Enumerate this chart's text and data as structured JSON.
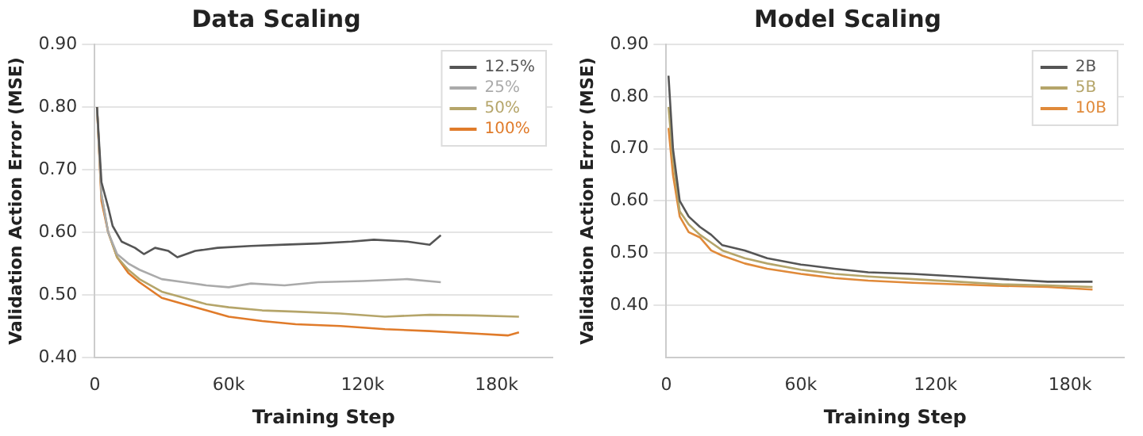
{
  "chart_data": [
    {
      "type": "line",
      "title": "Data Scaling",
      "xlabel": "Training Step",
      "ylabel": "Validation Action Error (MSE)",
      "xlim": [
        0,
        205000
      ],
      "xticks": [
        0,
        {
          "value": 60000,
          "label": "60k"
        },
        {
          "value": 120000,
          "label": "120k"
        },
        {
          "value": 180000,
          "label": "180k"
        }
      ],
      "ylim": [
        0.4,
        0.9
      ],
      "yticks": [
        {
          "value": 0.4,
          "label": "0.40"
        },
        {
          "value": 0.5,
          "label": "0.50"
        },
        {
          "value": 0.6,
          "label": "0.60"
        },
        {
          "value": 0.7,
          "label": "0.70"
        },
        {
          "value": 0.8,
          "label": "0.80"
        },
        {
          "value": 0.9,
          "label": "0.90"
        }
      ],
      "grid": "y",
      "legend": "top right",
      "marker": "none",
      "line_style": "solid",
      "series": [
        {
          "name": "12.5%",
          "color": "#555555",
          "x": [
            1000,
            3000,
            6000,
            8000,
            12000,
            18000,
            22000,
            27000,
            33000,
            37000,
            45000,
            55000,
            70000,
            85000,
            100000,
            115000,
            125000,
            140000,
            150000,
            155000
          ],
          "values": [
            0.8,
            0.68,
            0.64,
            0.61,
            0.585,
            0.575,
            0.565,
            0.575,
            0.57,
            0.56,
            0.57,
            0.575,
            0.578,
            0.58,
            0.582,
            0.585,
            0.588,
            0.585,
            0.58,
            0.595
          ]
        },
        {
          "name": "25%",
          "color": "#aaaaaa",
          "x": [
            1000,
            3000,
            6000,
            10000,
            15000,
            20000,
            30000,
            40000,
            50000,
            60000,
            70000,
            85000,
            100000,
            120000,
            140000,
            155000
          ],
          "values": [
            0.8,
            0.66,
            0.6,
            0.565,
            0.55,
            0.54,
            0.525,
            0.52,
            0.515,
            0.512,
            0.518,
            0.515,
            0.52,
            0.522,
            0.525,
            0.52
          ]
        },
        {
          "name": "50%",
          "color": "#b5a56a",
          "x": [
            1000,
            3000,
            6000,
            10000,
            15000,
            20000,
            30000,
            40000,
            50000,
            60000,
            75000,
            90000,
            110000,
            130000,
            150000,
            170000,
            190000
          ],
          "values": [
            0.8,
            0.66,
            0.6,
            0.56,
            0.54,
            0.525,
            0.505,
            0.495,
            0.485,
            0.48,
            0.475,
            0.473,
            0.47,
            0.465,
            0.468,
            0.467,
            0.465
          ]
        },
        {
          "name": "100%",
          "color": "#e07b2a",
          "x": [
            1000,
            3000,
            6000,
            10000,
            15000,
            20000,
            30000,
            40000,
            50000,
            60000,
            75000,
            90000,
            110000,
            130000,
            150000,
            170000,
            185000,
            190000
          ],
          "values": [
            0.8,
            0.65,
            0.6,
            0.56,
            0.535,
            0.52,
            0.495,
            0.485,
            0.475,
            0.465,
            0.458,
            0.453,
            0.45,
            0.445,
            0.442,
            0.438,
            0.435,
            0.44
          ]
        }
      ]
    },
    {
      "type": "line",
      "title": "Model Scaling",
      "xlabel": "Training Step",
      "ylabel": "Validation Action Error (MSE)",
      "xlim": [
        0,
        204000
      ],
      "xticks": [
        0,
        {
          "value": 60000,
          "label": "60k"
        },
        {
          "value": 120000,
          "label": "120k"
        },
        {
          "value": 180000,
          "label": "180k"
        }
      ],
      "ylim": [
        0.3,
        0.9
      ],
      "yticks": [
        {
          "value": 0.4,
          "label": "0.40"
        },
        {
          "value": 0.5,
          "label": "0.50"
        },
        {
          "value": 0.6,
          "label": "0.60"
        },
        {
          "value": 0.7,
          "label": "0.70"
        },
        {
          "value": 0.8,
          "label": "0.80"
        },
        {
          "value": 0.9,
          "label": "0.90"
        }
      ],
      "grid": "y",
      "legend": "top right",
      "marker": "none",
      "line_style": "solid",
      "series": [
        {
          "name": "2B",
          "color": "#555555",
          "x": [
            1000,
            3000,
            6000,
            10000,
            15000,
            20000,
            25000,
            35000,
            45000,
            60000,
            75000,
            90000,
            110000,
            130000,
            150000,
            170000,
            190000
          ],
          "values": [
            0.84,
            0.7,
            0.6,
            0.57,
            0.55,
            0.535,
            0.515,
            0.505,
            0.49,
            0.478,
            0.47,
            0.463,
            0.46,
            0.455,
            0.45,
            0.445,
            0.445
          ]
        },
        {
          "name": "5B",
          "color": "#b5a56a",
          "x": [
            1000,
            3000,
            6000,
            10000,
            15000,
            20000,
            25000,
            35000,
            45000,
            60000,
            75000,
            90000,
            110000,
            130000,
            150000,
            170000,
            190000
          ],
          "values": [
            0.78,
            0.68,
            0.58,
            0.555,
            0.535,
            0.52,
            0.505,
            0.49,
            0.48,
            0.468,
            0.46,
            0.455,
            0.45,
            0.445,
            0.44,
            0.438,
            0.435
          ]
        },
        {
          "name": "10B",
          "color": "#e08a3a",
          "x": [
            1000,
            3000,
            6000,
            10000,
            15000,
            20000,
            25000,
            35000,
            45000,
            60000,
            75000,
            90000,
            110000,
            130000,
            150000,
            170000,
            190000
          ],
          "values": [
            0.74,
            0.65,
            0.57,
            0.54,
            0.53,
            0.505,
            0.495,
            0.48,
            0.47,
            0.46,
            0.452,
            0.447,
            0.443,
            0.44,
            0.437,
            0.435,
            0.43
          ]
        }
      ]
    }
  ]
}
